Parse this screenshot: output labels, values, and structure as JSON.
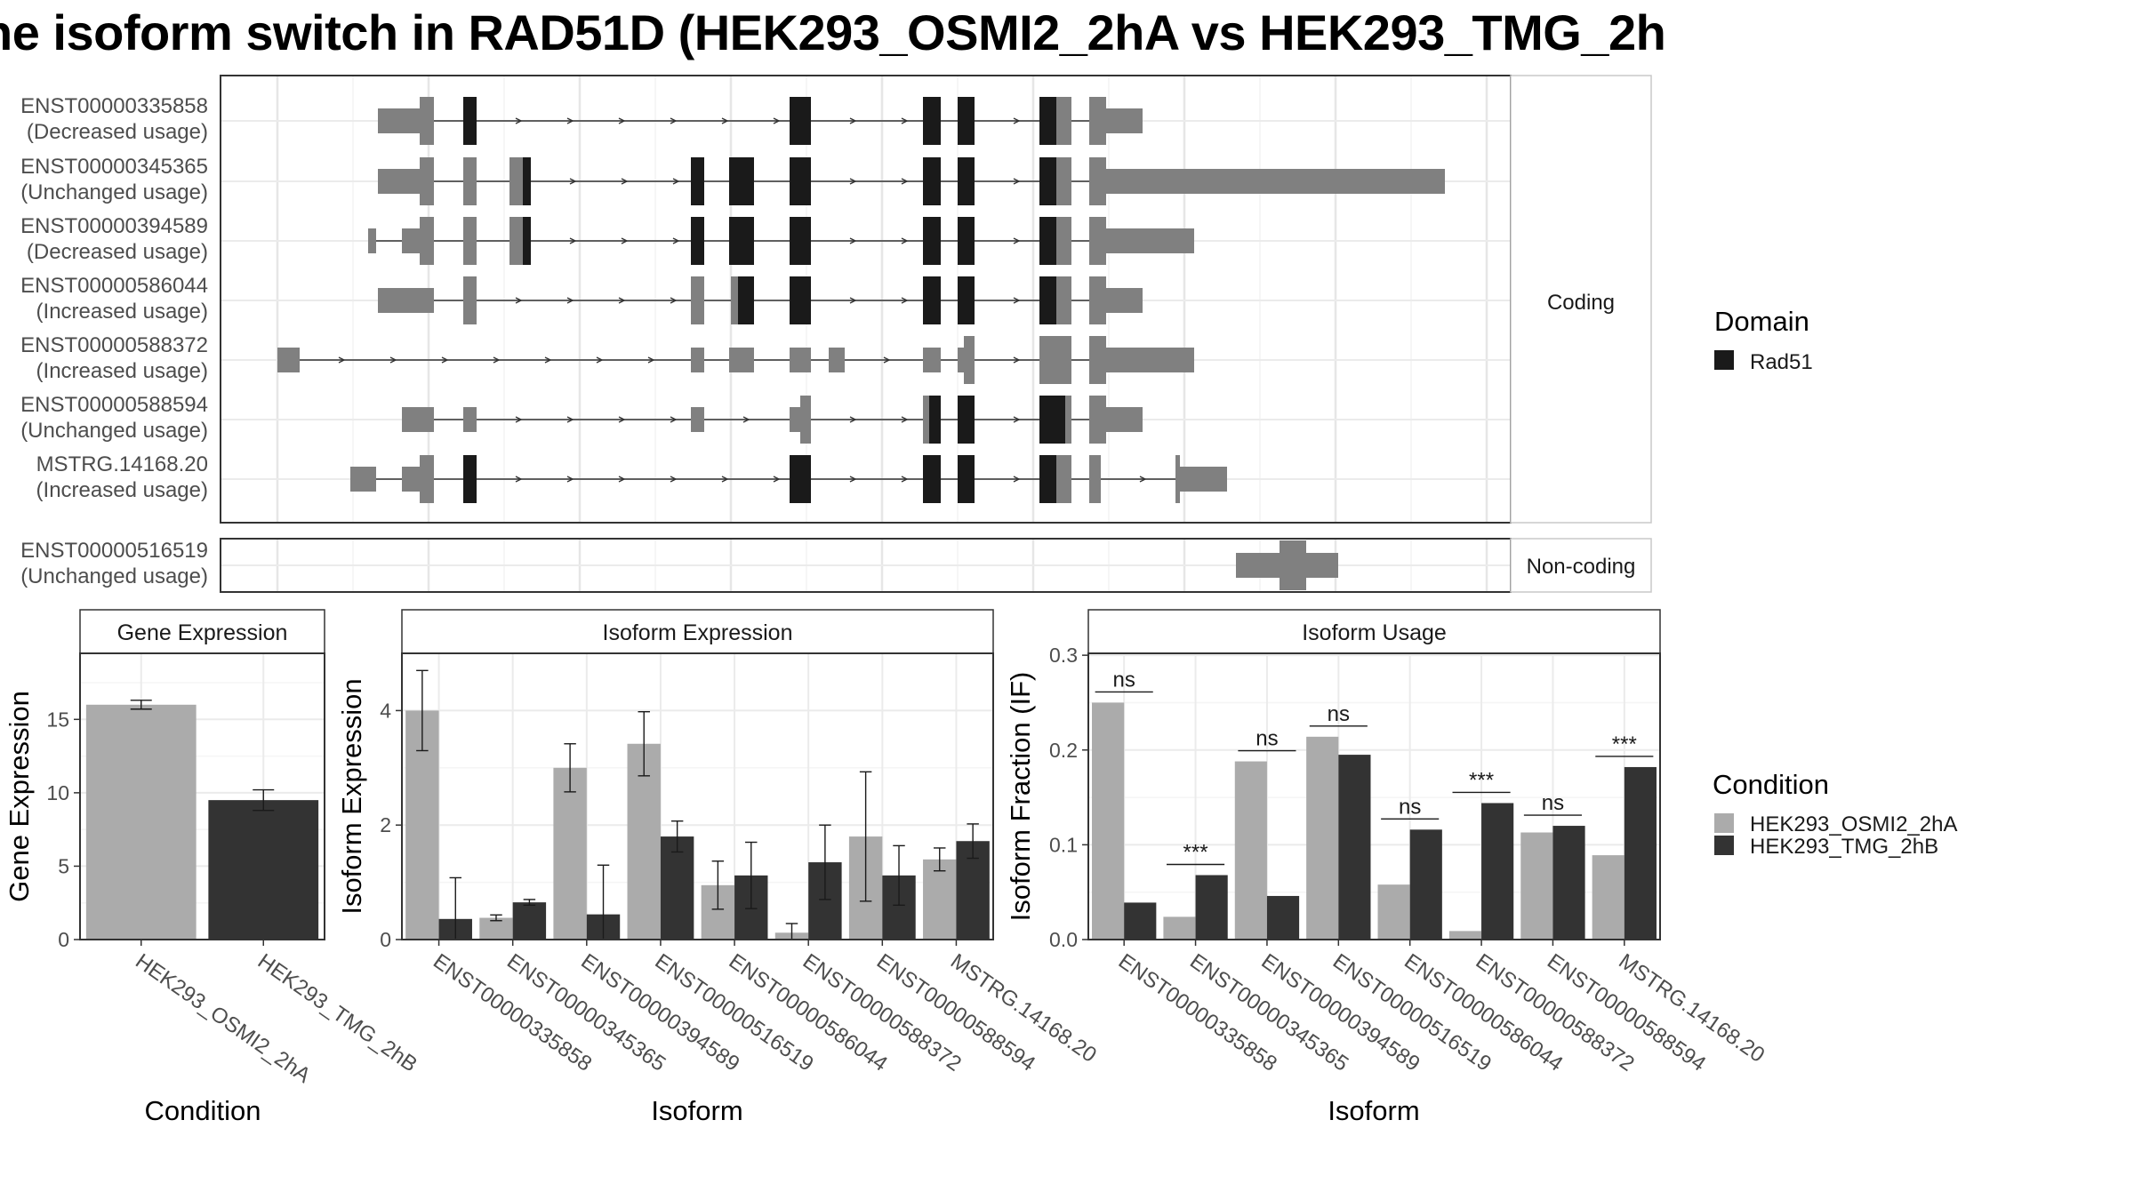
{
  "title": "ne isoform switch in RAD51D (HEK293_OSMI2_2hA vs HEK293_TMG_2h",
  "colors": {
    "osmi": "#ababab",
    "tmg": "#333333",
    "exon": "#808080",
    "domain": "#1a1a1a",
    "panel_border": "#333333",
    "grid": "#ebebeb"
  },
  "legends": {
    "domain": {
      "title": "Domain",
      "items": [
        "Rad51"
      ]
    },
    "condition": {
      "title": "Condition",
      "items": [
        "HEK293_OSMI2_2hA",
        "HEK293_TMG_2hB"
      ]
    }
  },
  "structure": {
    "strips": {
      "coding": "Coding",
      "noncoding": "Non-coding"
    },
    "coding": [
      {
        "id": "ENST00000335858",
        "usage": "(Decreased usage)"
      },
      {
        "id": "ENST00000345365",
        "usage": "(Unchanged usage)"
      },
      {
        "id": "ENST00000394589",
        "usage": "(Decreased usage)"
      },
      {
        "id": "ENST00000586044",
        "usage": "(Increased usage)"
      },
      {
        "id": "ENST00000588372",
        "usage": "(Increased usage)"
      },
      {
        "id": "ENST00000588594",
        "usage": "(Unchanged usage)"
      },
      {
        "id": "MSTRG.14168.20",
        "usage": "(Increased usage)"
      }
    ],
    "noncoding": [
      {
        "id": "ENST00000516519",
        "usage": "(Unchanged usage)"
      }
    ]
  },
  "chart_data": [
    {
      "type": "bar",
      "title": "Gene Expression",
      "xlabel": "Condition",
      "ylabel": "Gene Expression",
      "ylim": [
        0,
        19.5
      ],
      "yticks": [
        0,
        5,
        10,
        15
      ],
      "categories": [
        "HEK293_OSMI2_2hA",
        "HEK293_TMG_2hB"
      ],
      "values": [
        16.0,
        9.5
      ],
      "errors": [
        [
          15.7,
          16.3
        ],
        [
          8.8,
          10.2
        ]
      ]
    },
    {
      "type": "bar",
      "title": "Isoform Expression",
      "xlabel": "Isoform",
      "ylabel": "Isoform Expression",
      "ylim": [
        0,
        5.0
      ],
      "yticks": [
        0,
        2,
        4
      ],
      "categories": [
        "ENST00000335858",
        "ENST00000345365",
        "ENST00000394589",
        "ENST00000516519",
        "ENST00000586044",
        "ENST00000588372",
        "ENST00000588594",
        "MSTRG.14168.20"
      ],
      "series": [
        {
          "name": "HEK293_OSMI2_2hA",
          "values": [
            4.0,
            0.38,
            3.0,
            3.42,
            0.95,
            0.12,
            1.8,
            1.4
          ],
          "errors": [
            [
              3.3,
              4.7
            ],
            [
              0.33,
              0.43
            ],
            [
              2.58,
              3.42
            ],
            [
              2.86,
              3.98
            ],
            [
              0.53,
              1.37
            ],
            [
              0.0,
              0.28
            ],
            [
              0.67,
              2.93
            ],
            [
              1.2,
              1.6
            ]
          ]
        },
        {
          "name": "HEK293_TMG_2hB",
          "values": [
            0.36,
            0.65,
            0.44,
            1.8,
            1.12,
            1.35,
            1.12,
            1.72
          ],
          "errors": [
            [
              0.0,
              1.08
            ],
            [
              0.6,
              0.7
            ],
            [
              0.0,
              1.3
            ],
            [
              1.53,
              2.07
            ],
            [
              0.54,
              1.7
            ],
            [
              0.7,
              2.0
            ],
            [
              0.6,
              1.64
            ],
            [
              1.42,
              2.02
            ]
          ]
        }
      ]
    },
    {
      "type": "bar",
      "title": "Isoform Usage",
      "xlabel": "Isoform",
      "ylabel": "Isoform Fraction (IF)",
      "ylim": [
        0,
        0.302
      ],
      "yticks": [
        0.0,
        0.1,
        0.2,
        0.3
      ],
      "ytick_labels": [
        "0.0",
        "0.1",
        "0.2",
        "0.3"
      ],
      "categories": [
        "ENST00000335858",
        "ENST00000345365",
        "ENST00000394589",
        "ENST00000516519",
        "ENST00000586044",
        "ENST00000588372",
        "ENST00000588594",
        "MSTRG.14168.20"
      ],
      "series": [
        {
          "name": "HEK293_OSMI2_2hA",
          "values": [
            0.25,
            0.024,
            0.188,
            0.214,
            0.058,
            0.009,
            0.113,
            0.089
          ]
        },
        {
          "name": "HEK293_TMG_2hB",
          "values": [
            0.039,
            0.068,
            0.046,
            0.195,
            0.116,
            0.144,
            0.12,
            0.182
          ]
        }
      ],
      "significance": [
        "ns",
        "***",
        "ns",
        "ns",
        "ns",
        "***",
        "ns",
        "***"
      ]
    }
  ]
}
